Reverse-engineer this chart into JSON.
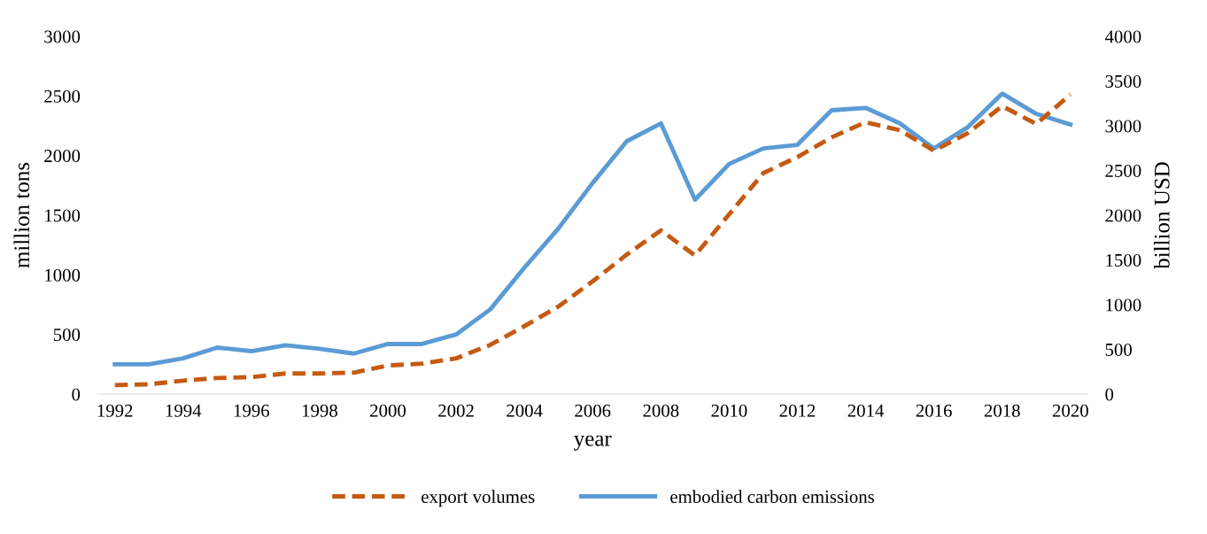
{
  "chart_data": {
    "type": "line",
    "xlabel": "year",
    "ylabel": "million tons",
    "y2label": "billion USD",
    "categories": [
      "1992",
      null,
      "1994",
      null,
      "1996",
      null,
      "1998",
      null,
      "2000",
      null,
      "2002",
      null,
      "2004",
      null,
      "2006",
      null,
      "2008",
      null,
      "2010",
      null,
      "2012",
      null,
      "2014",
      null,
      "2016",
      null,
      "2018",
      null,
      "2020"
    ],
    "series": [
      {
        "name": "export volumes",
        "color": "#c55a11",
        "axis": "y2",
        "line_style": "dashed",
        "values": [
          100,
          110,
          150,
          180,
          190,
          230,
          230,
          240,
          320,
          340,
          400,
          550,
          760,
          980,
          1260,
          1560,
          1830,
          1550,
          2010,
          2470,
          2650,
          2870,
          3040,
          2950,
          2720,
          2920,
          3220,
          3020,
          3350
        ]
      },
      {
        "name": "embodied carbon emissions",
        "color": "#5b9bd5",
        "line_style": "solid",
        "values": [
          250,
          250,
          300,
          390,
          360,
          410,
          380,
          340,
          420,
          420,
          500,
          710,
          1060,
          1390,
          1770,
          2120,
          2270,
          1630,
          1930,
          2060,
          2090,
          2380,
          2400,
          2270,
          2060,
          2240,
          2520,
          2350,
          2260
        ]
      }
    ],
    "ylim": [
      0,
      3000
    ],
    "yticks": [
      0,
      500,
      1000,
      1500,
      2000,
      2500,
      3000
    ],
    "y2lim": [
      0,
      4000
    ],
    "y2ticks": [
      0,
      500,
      1000,
      1500,
      2000,
      2500,
      3000,
      3500,
      4000
    ],
    "grid": false,
    "legend": "bottom",
    "marker": "none"
  }
}
